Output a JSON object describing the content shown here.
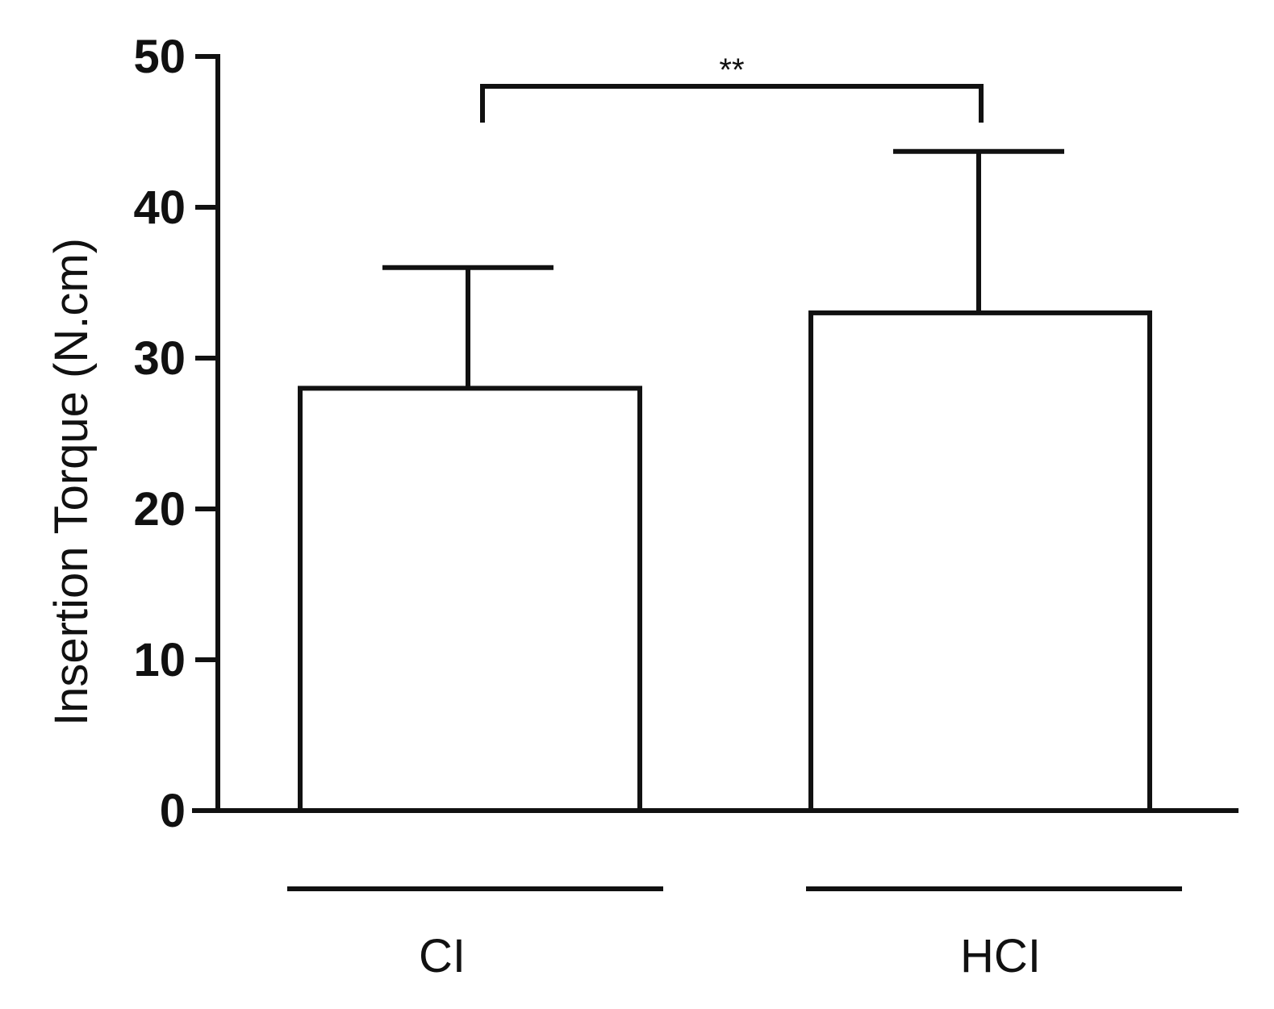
{
  "chart_data": {
    "type": "bar",
    "categories": [
      "CI",
      "HCI"
    ],
    "series": [
      {
        "values": [
          28,
          33
        ],
        "error_upper": [
          36,
          43.7
        ]
      }
    ],
    "ylabel": "Insertion Torque (N.cm)",
    "xlabel": "",
    "ylim": [
      0,
      50
    ],
    "yticks": [
      0,
      10,
      20,
      30,
      40,
      50
    ],
    "ytick_labels": [
      "0",
      "10",
      "20",
      "30",
      "40",
      "50"
    ],
    "grid": false,
    "annotations": [
      {
        "type": "significance-bracket",
        "from": "CI",
        "to": "HCI",
        "label": "**"
      }
    ]
  },
  "colors": {
    "bar_fill": "#ffffff",
    "stroke": "#111111"
  }
}
